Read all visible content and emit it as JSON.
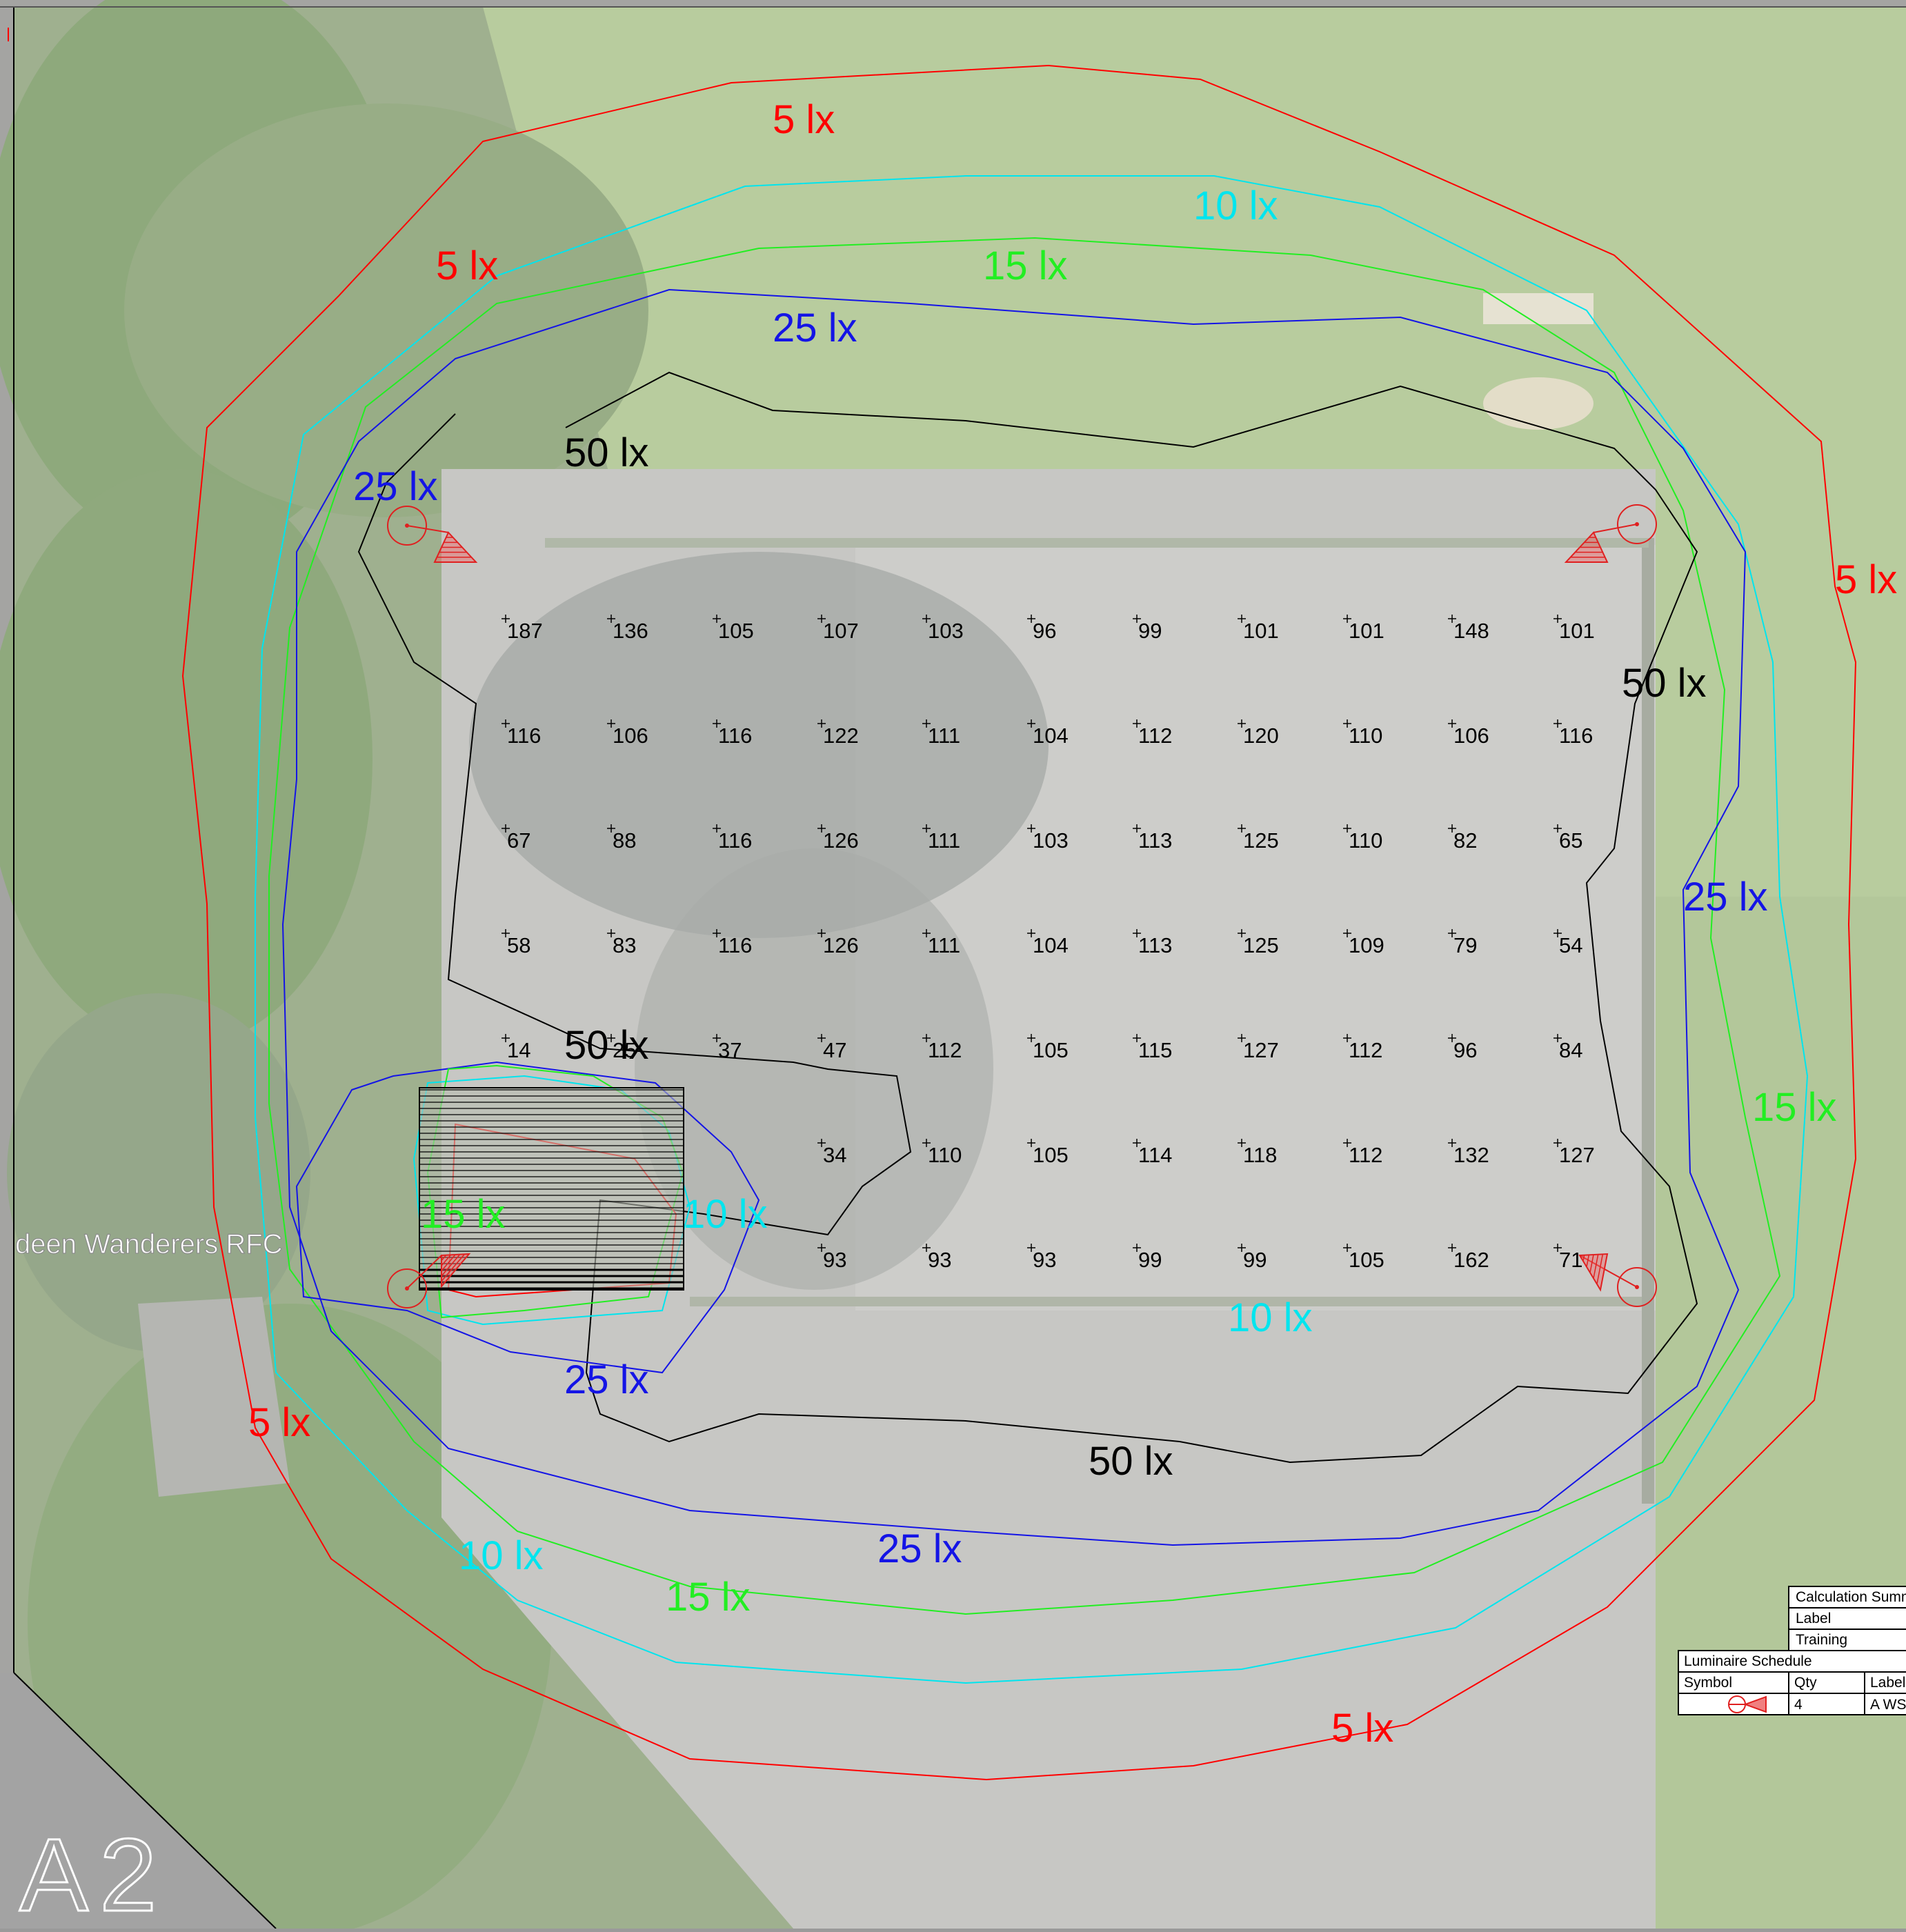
{
  "sheet": {
    "label": "A2"
  },
  "map": {
    "place_label": "deen Wanderers RFC"
  },
  "contour_labels": [
    {
      "text": "5 lx",
      "color": "#ff0000"
    },
    {
      "text": "5 lx",
      "color": "#ff0000"
    },
    {
      "text": "5 lx",
      "color": "#ff0000"
    },
    {
      "text": "5 lx",
      "color": "#ff0000"
    },
    {
      "text": "5 lx",
      "color": "#ff0000"
    },
    {
      "text": "10 lx",
      "color": "#00e5ee"
    },
    {
      "text": "10 lx",
      "color": "#00e5ee"
    },
    {
      "text": "10 lx",
      "color": "#00e5ee"
    },
    {
      "text": "10 lx",
      "color": "#00e5ee"
    },
    {
      "text": "15 lx",
      "color": "#22ee22"
    },
    {
      "text": "15 lx",
      "color": "#22ee22"
    },
    {
      "text": "15 lx",
      "color": "#22ee22"
    },
    {
      "text": "15 lx",
      "color": "#22ee22"
    },
    {
      "text": "25 lx",
      "color": "#1414e6"
    },
    {
      "text": "25 lx",
      "color": "#1414e6"
    },
    {
      "text": "25 lx",
      "color": "#1414e6"
    },
    {
      "text": "25 lx",
      "color": "#1414e6"
    },
    {
      "text": "25 lx",
      "color": "#1414e6"
    },
    {
      "text": "50 lx",
      "color": "#000000"
    },
    {
      "text": "50 lx",
      "color": "#000000"
    },
    {
      "text": "50 lx",
      "color": "#000000"
    },
    {
      "text": "50 lx",
      "color": "#000000"
    }
  ],
  "grid_values": [
    [
      "187",
      "136",
      "105",
      "107",
      "103",
      "96",
      "99",
      "101",
      "101",
      "148",
      "101"
    ],
    [
      "116",
      "106",
      "116",
      "122",
      "111",
      "104",
      "112",
      "120",
      "110",
      "106",
      "116"
    ],
    [
      "67",
      "88",
      "116",
      "126",
      "111",
      "103",
      "113",
      "125",
      "110",
      "82",
      "65"
    ],
    [
      "58",
      "83",
      "116",
      "126",
      "111",
      "104",
      "113",
      "125",
      "109",
      "79",
      "54"
    ],
    [
      "14",
      "25",
      "37",
      "47",
      "112",
      "105",
      "115",
      "127",
      "112",
      "96",
      "84"
    ],
    [
      "",
      "",
      "",
      "34",
      "110",
      "105",
      "114",
      "118",
      "112",
      "132",
      "127"
    ],
    [
      "",
      "",
      "",
      "93",
      "93",
      "93",
      "99",
      "99",
      "105",
      "162",
      "71"
    ]
  ],
  "calculation_summary": {
    "title": "Calculation Summ",
    "header": "Label",
    "row": "Training"
  },
  "luminaire_schedule": {
    "title": "Luminaire Schedule",
    "headers": [
      "Symbol",
      "Qty",
      "Label"
    ],
    "row": {
      "qty": "4",
      "label": "A WS"
    }
  },
  "luminaires": {
    "count": 4,
    "color": "#e02020"
  }
}
